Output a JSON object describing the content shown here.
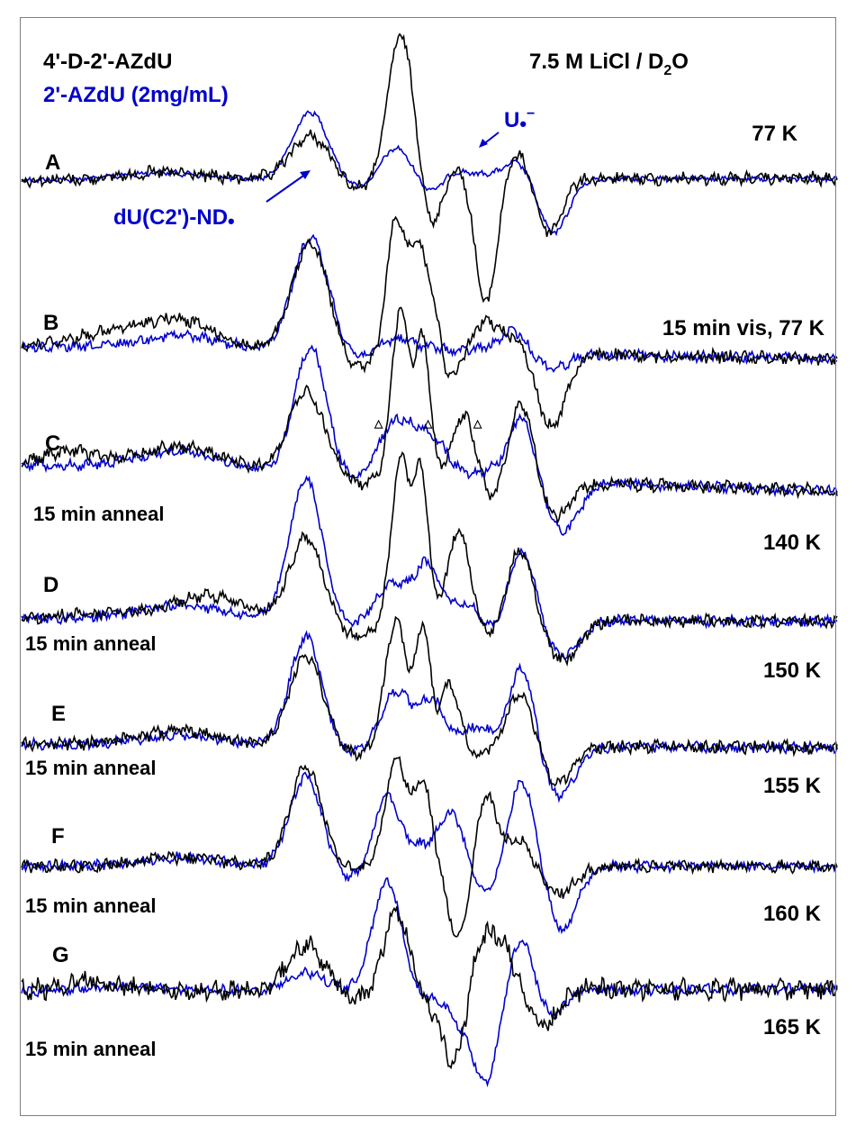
{
  "chart_data": {
    "type": "line",
    "title": "7.5 M LiCl / D",
    "title_sub": "2",
    "title_tail": "O",
    "legend": [
      {
        "name": "4'-D-2'-AZdU",
        "color": "#000000"
      },
      {
        "name": "2'-AZdU (2mg/mL)",
        "color": "#0000cc"
      }
    ],
    "annotations": {
      "radical_nd": "dU(C2')-ND",
      "radical_u": "U",
      "radical_u_charge": "−"
    },
    "colors": {
      "black": "#000000",
      "blue": "#0000cc"
    },
    "spectra": [
      {
        "panel": "A",
        "condition": "77 K",
        "note": ""
      },
      {
        "panel": "B",
        "condition": "15 min vis, 77 K",
        "note": ""
      },
      {
        "panel": "C",
        "condition": "140 K",
        "note": "15 min anneal"
      },
      {
        "panel": "D",
        "condition": "150 K",
        "note": "15 min anneal"
      },
      {
        "panel": "E",
        "condition": "155 K",
        "note": "15 min anneal"
      },
      {
        "panel": "F",
        "condition": "160 K",
        "note": "15 min anneal"
      },
      {
        "panel": "G",
        "condition": "165 K",
        "note": "15 min anneal"
      }
    ],
    "markers": [
      "△",
      "△",
      "△"
    ],
    "grid": false,
    "axes": "none"
  }
}
